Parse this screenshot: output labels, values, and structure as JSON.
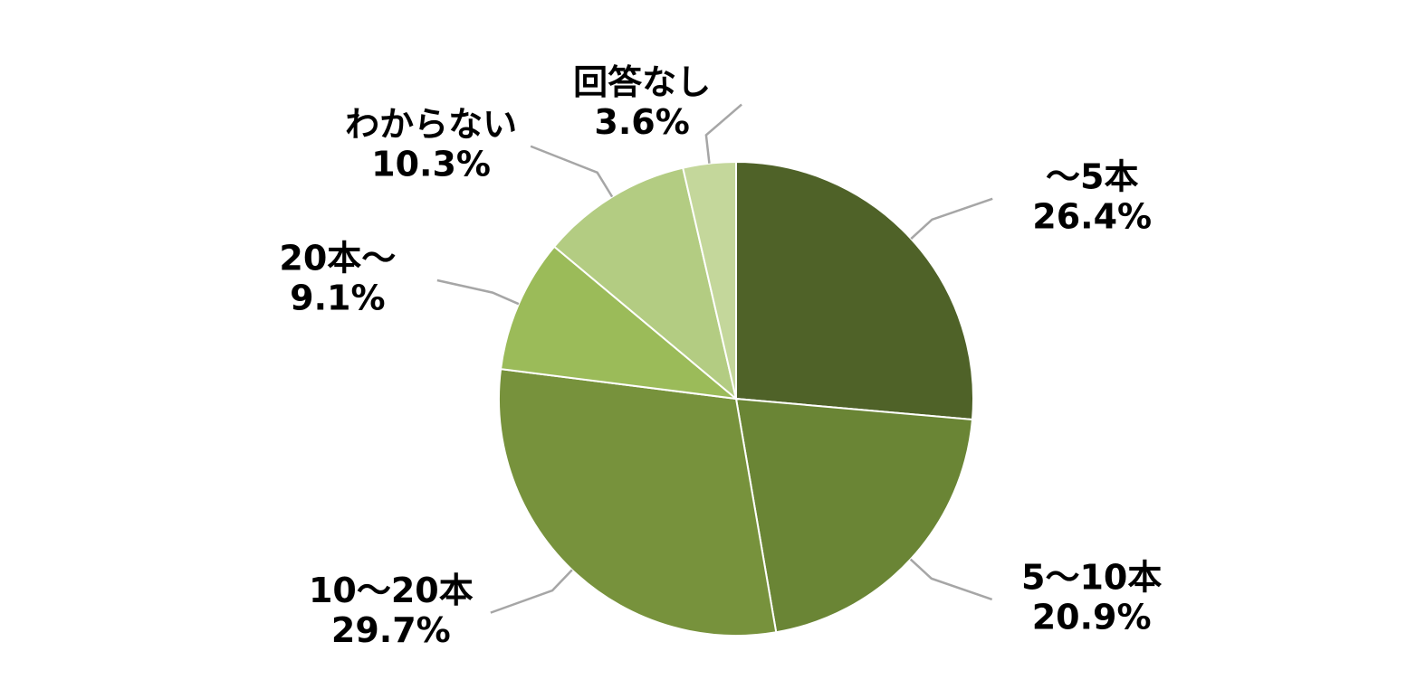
{
  "chart_data": {
    "type": "pie",
    "categories": [
      "～5本",
      "5～10本",
      "10～20本",
      "20本～",
      "わからない",
      "回答なし"
    ],
    "values": [
      26.4,
      20.9,
      29.7,
      9.1,
      10.3,
      3.6
    ],
    "value_labels": [
      "26.4%",
      "20.9%",
      "29.7%",
      "9.1%",
      "10.3%",
      "3.6%"
    ],
    "colors": [
      "#4f6228",
      "#6a8535",
      "#77923c",
      "#9bbb59",
      "#b3cc82",
      "#c4d79b"
    ]
  }
}
